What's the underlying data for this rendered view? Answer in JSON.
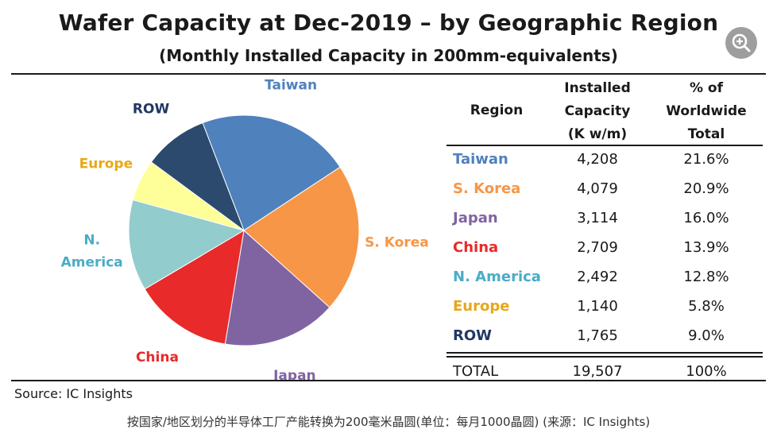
{
  "title": "Wafer Capacity at Dec-2019 – by Geographic Region",
  "subtitle": "(Monthly Installed Capacity in 200mm-equivalents)",
  "source": "Source: IC Insights",
  "caption": "按国家/地区划分的半导体工厂产能转换为200毫米晶圆(单位：每月1000晶圆) (来源：IC Insights)",
  "zoom_icon": "zoom-in-icon",
  "chart_data": {
    "type": "pie",
    "title": "Wafer Capacity at Dec-2019 – by Geographic Region",
    "subtitle": "(Monthly Installed Capacity in 200mm-equivalents)",
    "categories": [
      "Taiwan",
      "S. Korea",
      "Japan",
      "China",
      "N. America",
      "Europe",
      "ROW"
    ],
    "values": [
      4208,
      4079,
      3114,
      2709,
      2492,
      1140,
      1765
    ],
    "percent": [
      21.6,
      20.9,
      16.0,
      13.9,
      12.8,
      5.8,
      9.0
    ],
    "colors": [
      "#4f81bd",
      "#f79646",
      "#8064a2",
      "#e82a2a",
      "#93cccc",
      "#ffff99",
      "#2c4a6e"
    ],
    "label_colors": [
      "#4f81bd",
      "#f79646",
      "#8064a2",
      "#e82a2a",
      "#4bacc6",
      "#e6a817",
      "#1f3864"
    ],
    "pie_labels": [
      "Taiwan",
      "S. Korea",
      "Japan",
      "China",
      "N.\nAmerica",
      "Europe",
      "ROW"
    ]
  },
  "table": {
    "headers": {
      "region": "Region",
      "capacity": [
        "Installed",
        "Capacity",
        "(K w/m)"
      ],
      "percent": [
        "% of",
        "Worldwide",
        "Total"
      ]
    },
    "rows": [
      {
        "region": "Taiwan",
        "capacity": "4,208",
        "percent": "21.6%"
      },
      {
        "region": "S. Korea",
        "capacity": "4,079",
        "percent": "20.9%"
      },
      {
        "region": "Japan",
        "capacity": "3,114",
        "percent": "16.0%"
      },
      {
        "region": "China",
        "capacity": "2,709",
        "percent": "13.9%"
      },
      {
        "region": "N. America",
        "capacity": "2,492",
        "percent": "12.8%"
      },
      {
        "region": "Europe",
        "capacity": "1,140",
        "percent": "5.8%"
      },
      {
        "region": "ROW",
        "capacity": "1,765",
        "percent": "9.0%"
      }
    ],
    "total": {
      "region": "TOTAL",
      "capacity": "19,507",
      "percent": "100%"
    }
  }
}
